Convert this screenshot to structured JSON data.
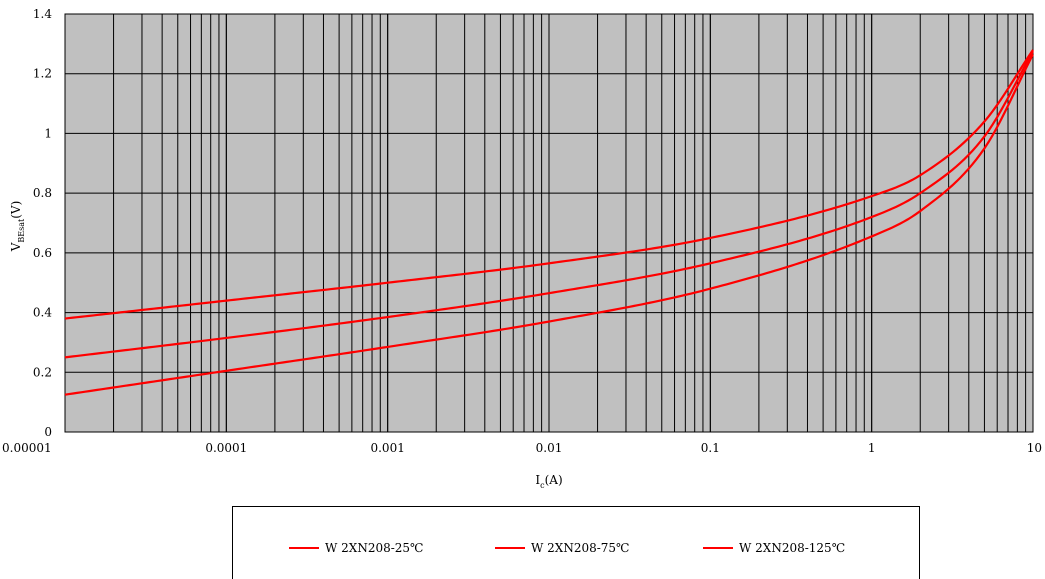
{
  "chart_data": {
    "type": "line",
    "xlabel": "Ic(A)",
    "ylabel": "VBEsat(V)",
    "x_scale": "log",
    "xlim": [
      1e-05,
      10
    ],
    "ylim": [
      0,
      1.4
    ],
    "x_ticks": [
      "0.00001",
      "0.0001",
      "0.001",
      "0.01",
      "0.1",
      "1",
      "10"
    ],
    "y_ticks": [
      "0",
      "0.2",
      "0.4",
      "0.6",
      "0.8",
      "1",
      "1.2",
      "1.4"
    ],
    "grid": true,
    "plot_background": "#c0c0c0",
    "legend_position": "bottom",
    "series": [
      {
        "name": "W 2XN208-25℃",
        "color": "#ff0000",
        "x": [
          1e-05,
          0.0001,
          0.001,
          0.01,
          0.1,
          1,
          2,
          5,
          10
        ],
        "y": [
          0.125,
          0.205,
          0.285,
          0.37,
          0.48,
          0.655,
          0.74,
          0.95,
          1.265
        ]
      },
      {
        "name": "W 2XN208-75℃",
        "color": "#ff0000",
        "x": [
          1e-05,
          0.0001,
          0.001,
          0.01,
          0.1,
          1,
          2,
          5,
          10
        ],
        "y": [
          0.25,
          0.315,
          0.385,
          0.465,
          0.565,
          0.72,
          0.8,
          0.99,
          1.275
        ]
      },
      {
        "name": "W 2XN208-125℃",
        "color": "#ff0000",
        "x": [
          1e-05,
          0.0001,
          0.001,
          0.01,
          0.1,
          1,
          2,
          5,
          10
        ],
        "y": [
          0.38,
          0.44,
          0.5,
          0.565,
          0.65,
          0.79,
          0.86,
          1.04,
          1.28
        ]
      }
    ]
  }
}
